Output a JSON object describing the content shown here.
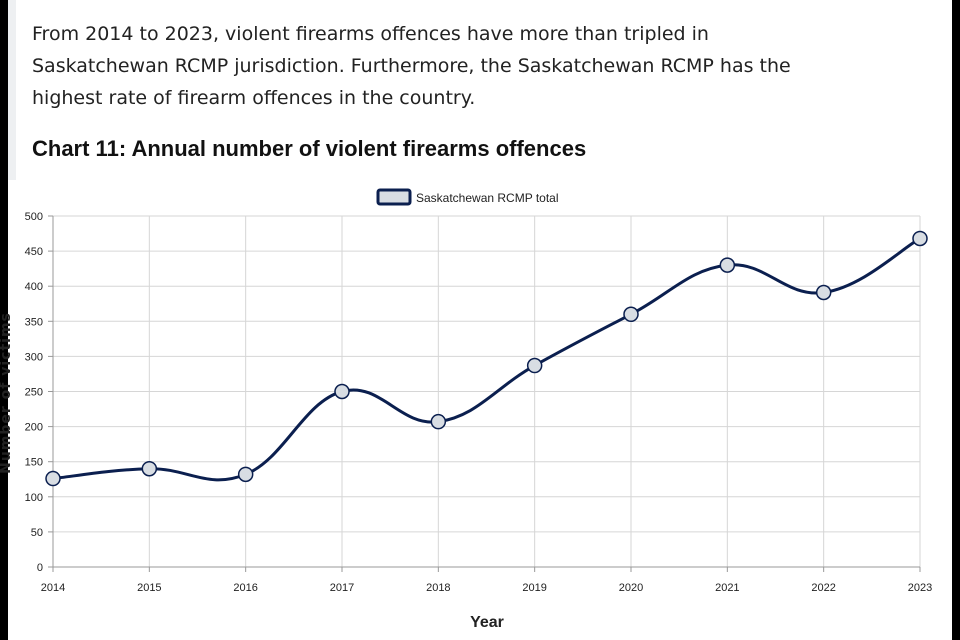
{
  "intro_text": "From 2014 to 2023, violent firearms offences have more than tripled in Saskatchewan RCMP jurisdiction. Furthermore, the Saskatchewan RCMP has the highest rate of firearm offences in the country.",
  "colors": {
    "series_line": "#0b1f4f",
    "marker_fill": "#d8dde3",
    "grid": "#d6d6d6",
    "text": "#222222"
  },
  "chart_data": {
    "type": "line",
    "title": "Chart 11: Annual number of violent firearms offences",
    "xlabel": "Year",
    "ylabel": "Number of victims",
    "categories": [
      "2014",
      "2015",
      "2016",
      "2017",
      "2018",
      "2019",
      "2020",
      "2021",
      "2022",
      "2023"
    ],
    "series": [
      {
        "name": "Saskatchewan RCMP total",
        "values": [
          126,
          140,
          132,
          250,
          207,
          287,
          360,
          430,
          391,
          468
        ]
      }
    ],
    "ylim": [
      0,
      500
    ],
    "yticks": [
      0,
      50,
      100,
      150,
      200,
      250,
      300,
      350,
      400,
      450,
      500
    ],
    "grid": true,
    "smooth": true,
    "legend_position": "top-center"
  }
}
